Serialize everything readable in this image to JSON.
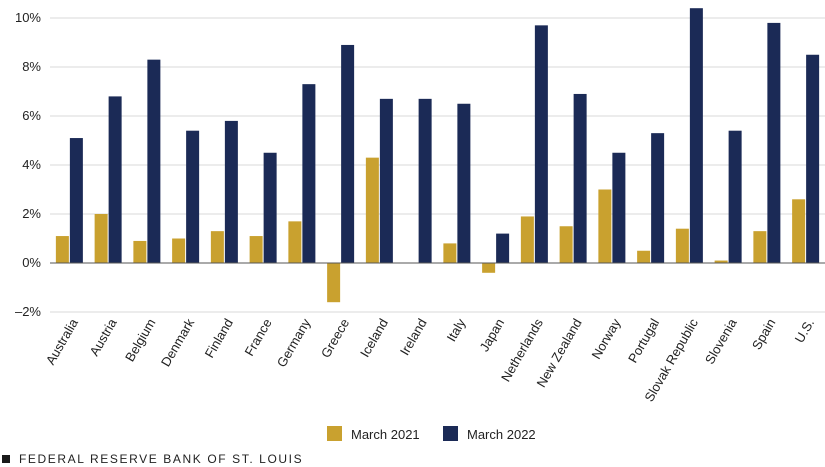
{
  "chart_data": {
    "type": "bar",
    "title": "",
    "xlabel": "",
    "ylabel": "",
    "ylim": [
      -2,
      10.5
    ],
    "yticks": [
      -2,
      0,
      2,
      4,
      6,
      8,
      10
    ],
    "ytick_labels": [
      "–2%",
      "0%",
      "2%",
      "4%",
      "6%",
      "8%",
      "10%"
    ],
    "grid": true,
    "legend_position": "bottom-center",
    "categories": [
      "Australia",
      "Austria",
      "Belgium",
      "Denmark",
      "Finland",
      "France",
      "Germany",
      "Greece",
      "Iceland",
      "Ireland",
      "Italy",
      "Japan",
      "Netherlands",
      "New Zealand",
      "Norway",
      "Portugal",
      "Slovak Republic",
      "Slovenia",
      "Spain",
      "U.S."
    ],
    "series": [
      {
        "name": "March 2021",
        "color": "#c9a12f",
        "values": [
          1.1,
          2.0,
          0.9,
          1.0,
          1.3,
          1.1,
          1.7,
          -1.6,
          4.3,
          0.0,
          0.8,
          -0.4,
          1.9,
          1.5,
          3.0,
          0.5,
          1.4,
          0.1,
          1.3,
          2.6
        ]
      },
      {
        "name": "March 2022",
        "color": "#1b2a56",
        "values": [
          5.1,
          6.8,
          8.3,
          5.4,
          5.8,
          4.5,
          7.3,
          8.9,
          6.7,
          6.7,
          6.5,
          1.2,
          9.7,
          6.9,
          4.5,
          5.3,
          10.4,
          5.4,
          9.8,
          8.5
        ]
      }
    ]
  },
  "footer": {
    "source": "FEDERAL RESERVE BANK OF ST. LOUIS"
  }
}
